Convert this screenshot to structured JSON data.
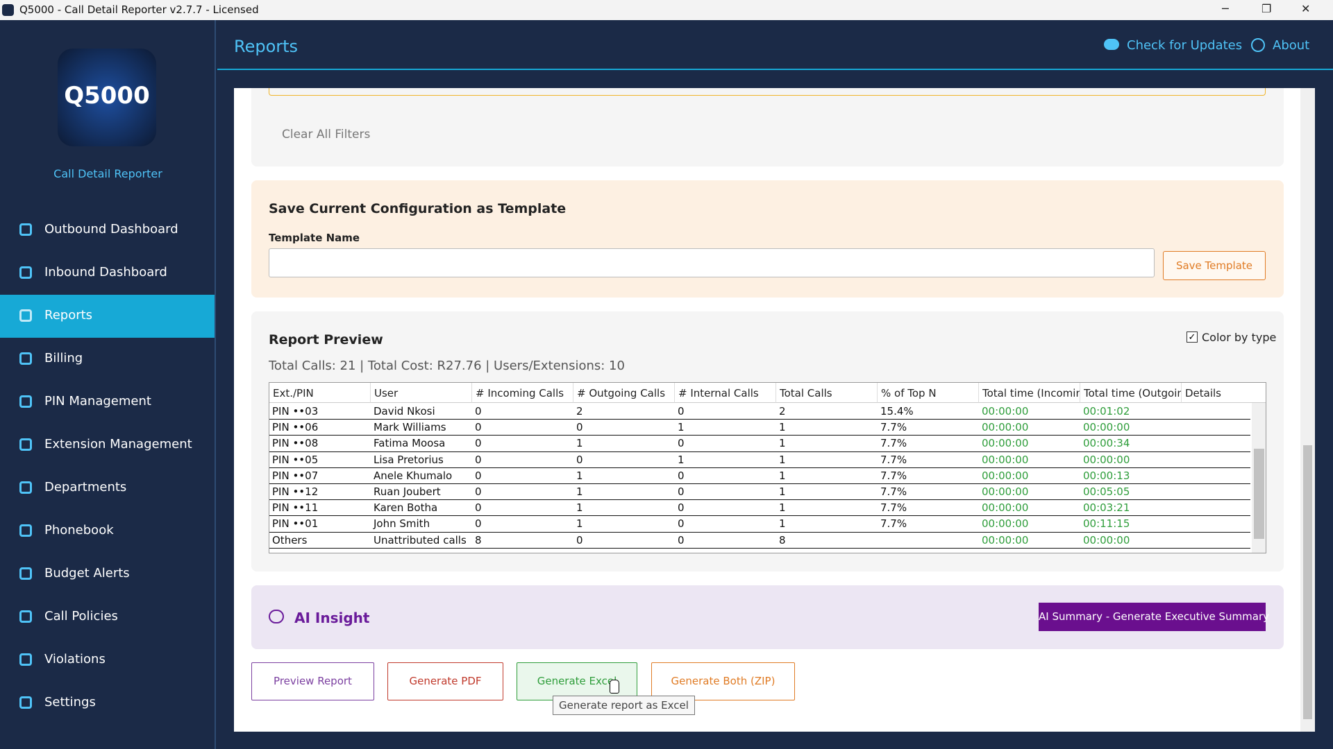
{
  "window": {
    "title": "Q5000 - Call Detail Reporter v2.7.7 - Licensed"
  },
  "sidebar": {
    "logo": "Q5000",
    "subtitle": "Call Detail Reporter",
    "nav": [
      "Outbound Dashboard",
      "Inbound Dashboard",
      "Reports",
      "Billing",
      "PIN Management",
      "Extension Management",
      "Departments",
      "Phonebook",
      "Budget Alerts",
      "Call Policies",
      "Violations",
      "Settings"
    ]
  },
  "header": {
    "title": "Reports",
    "actions": [
      "Check for Updates",
      "About"
    ]
  },
  "filters": {
    "clear": "Clear All Filters"
  },
  "template": {
    "title": "Save Current Configuration as Template",
    "label": "Template Name",
    "button": "Save Template"
  },
  "preview": {
    "title": "Report Preview",
    "color_by_type": "Color by type",
    "summary": "Total Calls: 21 | Total Cost: R27.76 | Users/Extensions: 10",
    "columns": [
      "Ext./PIN",
      "User",
      "# Incoming Calls",
      "# Outgoing Calls",
      "# Internal Calls",
      "Total Calls",
      "% of Top N",
      "Total time (Incoming",
      "Total time (Outgoing",
      "Details"
    ],
    "rows": [
      [
        "PIN ••03",
        "David Nkosi",
        "0",
        "2",
        "0",
        "2",
        "15.4%",
        "00:00:00",
        "00:01:02"
      ],
      [
        "PIN ••06",
        "Mark Williams",
        "0",
        "0",
        "1",
        "1",
        "7.7%",
        "00:00:00",
        "00:00:00"
      ],
      [
        "PIN ••08",
        "Fatima Moosa",
        "0",
        "1",
        "0",
        "1",
        "7.7%",
        "00:00:00",
        "00:00:34"
      ],
      [
        "PIN ••05",
        "Lisa Pretorius",
        "0",
        "0",
        "1",
        "1",
        "7.7%",
        "00:00:00",
        "00:00:00"
      ],
      [
        "PIN ••07",
        "Anele Khumalo",
        "0",
        "1",
        "0",
        "1",
        "7.7%",
        "00:00:00",
        "00:00:13"
      ],
      [
        "PIN ••12",
        "Ruan Joubert",
        "0",
        "1",
        "0",
        "1",
        "7.7%",
        "00:00:00",
        "00:05:05"
      ],
      [
        "PIN ••11",
        "Karen Botha",
        "0",
        "1",
        "0",
        "1",
        "7.7%",
        "00:00:00",
        "00:03:21"
      ],
      [
        "PIN ••01",
        "John Smith",
        "0",
        "1",
        "0",
        "1",
        "7.7%",
        "00:00:00",
        "00:11:15"
      ],
      [
        "Others",
        "Unattributed calls",
        "8",
        "0",
        "0",
        "8",
        null,
        "00:00:00",
        "00:00:00"
      ]
    ]
  },
  "ai": {
    "title": "AI Insight",
    "button": "AI Summary - Generate Executive Summary"
  },
  "actions": [
    "Preview Report",
    "Generate PDF",
    "Generate Excel",
    "Generate Both (ZIP)"
  ],
  "tooltip": "Generate report as Excel"
}
